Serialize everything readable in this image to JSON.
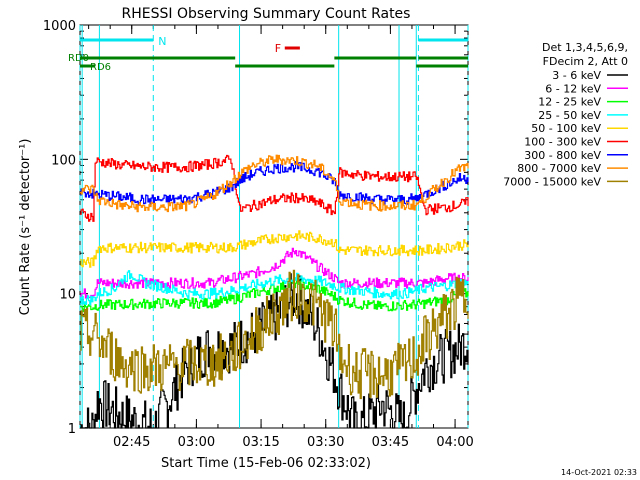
{
  "chart_data": {
    "type": "line",
    "title": "RHESSI Observing Summary Count Rates",
    "xlabel": "Start Time (15-Feb-06 02:33:02)",
    "ylabel": "Count Rate (s⁻¹ detector⁻¹)",
    "yscale": "log",
    "ylim": [
      1,
      1000
    ],
    "xlim_minutes": [
      0,
      90
    ],
    "x_tick_labels": [
      "02:45",
      "03:00",
      "03:15",
      "03:30",
      "03:45",
      "04:00"
    ],
    "x_tick_minutes": [
      12,
      27,
      42,
      57,
      72,
      87
    ],
    "y_tick_labels": [
      "1",
      "10",
      "100",
      "1000"
    ],
    "y_tick_values": [
      1,
      10,
      100,
      1000
    ],
    "legend_header": [
      "Det 1,3,4,5,6,9,",
      "FDecim 2, Att 0"
    ],
    "legend_position": "right",
    "footer_date": "14-Oct-2021 02:33",
    "annotations": {
      "night_label": "N",
      "flare_label": "F",
      "rd0_label": "RD0",
      "rd6_label": "RD6"
    },
    "night_intervals_minutes": [
      [
        0,
        17
      ],
      [
        78.5,
        90
      ]
    ],
    "flare_interval_minutes": [
      47.5,
      51
    ],
    "rd0_segments_minutes": [
      [
        0,
        36
      ],
      [
        59,
        78
      ],
      [
        78.5,
        90
      ]
    ],
    "rd6_segments_minutes": [
      [
        0,
        3.5
      ],
      [
        36,
        59
      ],
      [
        78,
        90
      ]
    ],
    "saa_edges_minutes": [
      [
        0.5,
        4.5
      ],
      [
        37,
        60
      ],
      [
        74,
        78
      ]
    ],
    "colors": {
      "axis": "#000000",
      "night": "#00e5ee",
      "rd": "#008000",
      "flare": "#e00000"
    },
    "series": [
      {
        "name": "3 - 6 keV",
        "color": "#000000",
        "x": [
          0,
          3,
          4,
          10,
          17,
          20,
          25,
          30,
          35,
          40,
          45,
          48,
          50,
          52,
          55,
          59,
          60,
          64,
          70,
          75,
          78,
          80,
          85,
          88,
          90
        ],
        "y": [
          1.0,
          1.0,
          1.6,
          1.2,
          1.0,
          1.5,
          3.0,
          4.0,
          4.0,
          5.0,
          6.5,
          8.5,
          10.0,
          8.0,
          5.5,
          2.5,
          2.0,
          1.0,
          1.5,
          1.1,
          2.0,
          2.8,
          3.5,
          4.0,
          4.5
        ]
      },
      {
        "name": "6 - 12 keV",
        "color": "#ff00ff",
        "x": [
          0,
          3,
          4,
          10,
          15,
          20,
          25,
          30,
          35,
          40,
          45,
          48,
          50,
          52,
          55,
          59,
          60,
          65,
          70,
          75,
          78,
          80,
          85,
          88,
          90
        ],
        "y": [
          10,
          10,
          12,
          12,
          12,
          12,
          12,
          12,
          13,
          14,
          16,
          19,
          21,
          19,
          16,
          13,
          12,
          12,
          12,
          12,
          12,
          12,
          13,
          13,
          13
        ]
      },
      {
        "name": "12 - 25 keV",
        "color": "#00ff00",
        "x": [
          0,
          3,
          4,
          10,
          15,
          20,
          25,
          30,
          35,
          40,
          45,
          48,
          50,
          52,
          55,
          59,
          60,
          65,
          70,
          75,
          78,
          80,
          85,
          88,
          90
        ],
        "y": [
          8,
          8,
          8.2,
          8.3,
          8.4,
          8.5,
          8.5,
          8.5,
          9,
          10,
          11,
          11.5,
          12,
          11.5,
          11,
          9.5,
          9,
          8.3,
          8,
          8.2,
          8.3,
          8.5,
          9,
          10,
          10
        ]
      },
      {
        "name": "25 - 50 keV",
        "color": "#00ffff",
        "x": [
          0,
          3,
          4,
          8,
          10,
          12,
          15,
          20,
          25,
          30,
          35,
          40,
          45,
          50,
          55,
          59,
          60,
          65,
          70,
          75,
          78,
          80,
          85,
          88,
          90
        ],
        "y": [
          9,
          9,
          10,
          11,
          13,
          14,
          12,
          11,
          10,
          10,
          10.5,
          11.5,
          12.5,
          13,
          12.5,
          11.5,
          11,
          10.5,
          10,
          10,
          10.5,
          11,
          11.5,
          12,
          12
        ]
      },
      {
        "name": "50 - 100 keV",
        "color": "#ffd700",
        "x": [
          0,
          3,
          4,
          10,
          15,
          20,
          25,
          30,
          35,
          40,
          45,
          50,
          55,
          59,
          60,
          65,
          70,
          75,
          78,
          80,
          85,
          88,
          90
        ],
        "y": [
          17,
          17,
          22,
          22,
          22,
          22,
          22,
          22,
          22,
          24,
          26,
          27,
          26,
          24,
          21,
          21,
          21,
          21,
          21,
          21,
          22,
          23,
          23
        ]
      },
      {
        "name": "100 - 300 keV",
        "color": "#ff0000",
        "x": [
          0,
          3,
          3.5,
          10,
          15,
          20,
          25,
          30,
          35,
          37,
          40,
          45,
          50,
          55,
          59,
          60,
          65,
          70,
          75,
          78,
          80,
          85,
          88,
          90
        ],
        "y": [
          40,
          37,
          97,
          90,
          88,
          87,
          88,
          92,
          100,
          42,
          45,
          50,
          52,
          48,
          40,
          80,
          76,
          74,
          74,
          74,
          42,
          44,
          46,
          48
        ]
      },
      {
        "name": "300 - 800 keV",
        "color": "#0000ff",
        "x": [
          0,
          3,
          4,
          10,
          15,
          20,
          25,
          30,
          35,
          37,
          40,
          45,
          50,
          55,
          59,
          60,
          65,
          70,
          75,
          78,
          80,
          85,
          88,
          90
        ],
        "y": [
          58,
          55,
          55,
          52,
          50,
          50,
          51,
          55,
          62,
          70,
          78,
          86,
          88,
          82,
          68,
          55,
          52,
          50,
          50,
          51,
          55,
          65,
          72,
          72
        ]
      },
      {
        "name": "800 - 7000 keV",
        "color": "#ff8c00",
        "x": [
          0,
          3,
          4,
          10,
          15,
          20,
          25,
          30,
          35,
          37,
          40,
          45,
          50,
          55,
          59,
          60,
          65,
          70,
          75,
          78,
          80,
          85,
          88,
          90
        ],
        "y": [
          60,
          60,
          50,
          45,
          44,
          44,
          45,
          52,
          68,
          78,
          90,
          100,
          98,
          90,
          70,
          50,
          46,
          45,
          45,
          46,
          52,
          72,
          85,
          88
        ]
      },
      {
        "name": "7000 - 15000 keV",
        "color": "#a08000",
        "x": [
          0,
          3,
          4,
          10,
          15,
          20,
          25,
          30,
          35,
          40,
          45,
          48,
          50,
          52,
          55,
          59,
          60,
          64,
          70,
          75,
          78,
          80,
          85,
          88,
          90
        ],
        "y": [
          5,
          5,
          4.5,
          3.0,
          2.8,
          2.8,
          3.0,
          3.0,
          3.5,
          5,
          7,
          9,
          10,
          9.5,
          8,
          5.5,
          3.5,
          2.5,
          2.5,
          2.8,
          3.5,
          4.5,
          7,
          9,
          10
        ]
      }
    ]
  }
}
